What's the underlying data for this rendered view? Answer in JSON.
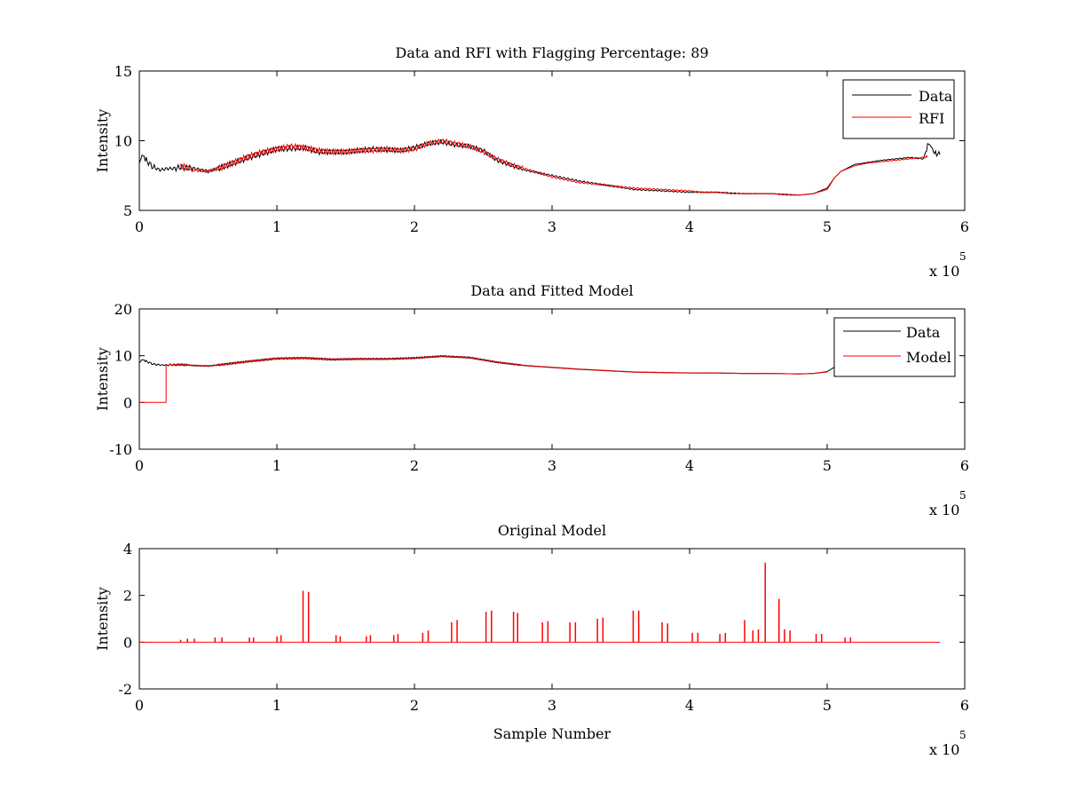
{
  "figure": {
    "background": "#ffffff",
    "x_exponent_base": "x 10",
    "x_exponent_power": "5"
  },
  "colors": {
    "data": "#000000",
    "rfi": "#ff0000",
    "model": "#ff0000"
  },
  "chart_data": [
    {
      "type": "line",
      "title": "Data and RFI with Flagging Percentage: 89",
      "xlabel": "",
      "ylabel": "Intensity",
      "xlim": [
        0,
        6
      ],
      "ylim": [
        5,
        15
      ],
      "xticks": [
        0,
        1,
        2,
        3,
        4,
        5,
        6
      ],
      "yticks": [
        5,
        10,
        15
      ],
      "x_scale_note": "x 10^5",
      "legend": {
        "position": "top-right",
        "entries": [
          "Data",
          "RFI"
        ]
      },
      "series": [
        {
          "name": "Data",
          "color": "#000000",
          "x": [
            0.0,
            0.02,
            0.05,
            0.1,
            0.15,
            0.2,
            0.25,
            0.3,
            0.4,
            0.5,
            0.6,
            0.8,
            1.0,
            1.2,
            1.3,
            1.5,
            1.7,
            1.9,
            2.0,
            2.1,
            2.2,
            2.3,
            2.4,
            2.5,
            2.6,
            2.8,
            3.0,
            3.2,
            3.4,
            3.6,
            3.8,
            4.0,
            4.2,
            4.4,
            4.6,
            4.8,
            4.9,
            5.0,
            5.05,
            5.1,
            5.2,
            5.4,
            5.6,
            5.7,
            5.73,
            5.75,
            5.78,
            5.82
          ],
          "y": [
            8.4,
            9.0,
            8.6,
            8.1,
            7.9,
            8.0,
            8.0,
            8.1,
            8.0,
            7.8,
            8.1,
            8.8,
            9.4,
            9.5,
            9.2,
            9.2,
            9.4,
            9.3,
            9.5,
            9.8,
            9.9,
            9.7,
            9.6,
            9.3,
            8.6,
            7.9,
            7.5,
            7.1,
            6.8,
            6.5,
            6.4,
            6.3,
            6.3,
            6.2,
            6.2,
            6.1,
            6.2,
            6.6,
            7.3,
            7.8,
            8.3,
            8.6,
            8.8,
            8.7,
            9.6,
            9.7,
            9.1,
            9.0
          ]
        },
        {
          "name": "RFI",
          "color": "#ff0000",
          "x": [
            0.3,
            0.4,
            0.5,
            0.6,
            0.7,
            0.8,
            0.9,
            1.0,
            1.1,
            1.2,
            1.3,
            1.4,
            1.5,
            1.6,
            1.7,
            1.8,
            1.9,
            2.0,
            2.1,
            2.2,
            2.3,
            2.4,
            2.5,
            2.6,
            2.7,
            2.8,
            2.9,
            3.0,
            3.1,
            3.2,
            3.3,
            3.4,
            3.6,
            3.8,
            4.0,
            4.1,
            4.2,
            4.3,
            4.4,
            4.5,
            4.6,
            4.7,
            4.8,
            4.9,
            5.0,
            5.05,
            5.1,
            5.2,
            5.3,
            5.4,
            5.5,
            5.6,
            5.7,
            5.73
          ],
          "y": [
            8.2,
            7.9,
            7.8,
            8.1,
            8.5,
            8.9,
            9.2,
            9.4,
            9.6,
            9.5,
            9.3,
            9.2,
            9.2,
            9.3,
            9.3,
            9.4,
            9.3,
            9.4,
            9.8,
            10.0,
            9.8,
            9.6,
            9.2,
            8.7,
            8.3,
            8.0,
            7.7,
            7.4,
            7.2,
            7.0,
            6.9,
            6.8,
            6.6,
            6.5,
            6.4,
            6.3,
            6.3,
            6.2,
            6.2,
            6.2,
            6.2,
            6.1,
            6.1,
            6.2,
            6.5,
            7.3,
            7.8,
            8.2,
            8.4,
            8.5,
            8.6,
            8.7,
            8.8,
            8.8
          ]
        }
      ]
    },
    {
      "type": "line",
      "title": "Data and Fitted Model",
      "xlabel": "",
      "ylabel": "Intensity",
      "xlim": [
        0,
        6
      ],
      "ylim": [
        -10,
        20
      ],
      "xticks": [
        0,
        1,
        2,
        3,
        4,
        5,
        6
      ],
      "yticks": [
        -10,
        0,
        10,
        20
      ],
      "x_scale_note": "x 10^5",
      "legend": {
        "position": "top-right",
        "entries": [
          "Data",
          "Model"
        ]
      },
      "series": [
        {
          "name": "Data",
          "color": "#000000",
          "x": [
            0.0,
            0.02,
            0.05,
            0.1,
            0.15,
            0.2,
            0.3,
            0.4,
            0.5,
            0.6,
            0.8,
            1.0,
            1.2,
            1.4,
            1.6,
            1.8,
            2.0,
            2.2,
            2.4,
            2.6,
            2.8,
            3.0,
            3.2,
            3.4,
            3.6,
            3.8,
            4.0,
            4.2,
            4.4,
            4.6,
            4.8,
            4.9,
            5.0,
            5.05
          ],
          "y": [
            8.5,
            9.2,
            8.8,
            8.2,
            8.0,
            8.0,
            8.1,
            7.9,
            7.8,
            8.1,
            8.8,
            9.4,
            9.5,
            9.2,
            9.3,
            9.3,
            9.5,
            9.9,
            9.6,
            8.6,
            7.9,
            7.5,
            7.1,
            6.8,
            6.5,
            6.4,
            6.3,
            6.3,
            6.2,
            6.2,
            6.1,
            6.2,
            6.6,
            7.5
          ]
        },
        {
          "name": "Model",
          "color": "#ff0000",
          "x": [
            0.0,
            0.195,
            0.195,
            0.3,
            0.4,
            0.5,
            0.6,
            0.8,
            1.0,
            1.2,
            1.4,
            1.6,
            1.8,
            2.0,
            2.2,
            2.4,
            2.6,
            2.8,
            3.0,
            3.2,
            3.4,
            3.6,
            3.8,
            4.0,
            4.2,
            4.4,
            4.6,
            4.8,
            4.9,
            5.0
          ],
          "y": [
            0,
            0,
            8.0,
            8.1,
            7.9,
            7.8,
            8.1,
            8.8,
            9.4,
            9.5,
            9.2,
            9.3,
            9.3,
            9.5,
            9.9,
            9.6,
            8.6,
            7.9,
            7.5,
            7.1,
            6.8,
            6.5,
            6.4,
            6.3,
            6.3,
            6.2,
            6.2,
            6.1,
            6.2,
            6.5
          ]
        }
      ]
    },
    {
      "type": "line",
      "title": "Original Model",
      "xlabel": "Sample Number",
      "ylabel": "Intensity",
      "xlim": [
        0,
        6
      ],
      "ylim": [
        -2,
        4
      ],
      "xticks": [
        0,
        1,
        2,
        3,
        4,
        5,
        6
      ],
      "yticks": [
        -2,
        0,
        2,
        4
      ],
      "x_scale_note": "x 10^5",
      "baseline": {
        "x_start": 0.0,
        "x_end": 5.82,
        "y": 0
      },
      "series": [
        {
          "name": "Original Model spikes",
          "color": "#ff0000",
          "x": [
            0.3,
            0.35,
            0.4,
            0.55,
            0.6,
            0.8,
            0.83,
            1.0,
            1.03,
            1.19,
            1.23,
            1.43,
            1.46,
            1.65,
            1.68,
            1.85,
            1.88,
            2.06,
            2.1,
            2.27,
            2.31,
            2.52,
            2.56,
            2.72,
            2.75,
            2.93,
            2.97,
            3.13,
            3.17,
            3.33,
            3.37,
            3.59,
            3.63,
            3.8,
            3.84,
            4.02,
            4.06,
            4.22,
            4.26,
            4.4,
            4.46,
            4.5,
            4.55,
            4.65,
            4.69,
            4.73,
            4.92,
            4.96,
            5.13,
            5.17
          ],
          "y": [
            0.1,
            0.15,
            0.15,
            0.2,
            0.2,
            0.2,
            0.2,
            0.25,
            0.3,
            2.2,
            2.15,
            0.3,
            0.25,
            0.25,
            0.3,
            0.3,
            0.35,
            0.4,
            0.5,
            0.85,
            0.95,
            1.3,
            1.35,
            1.3,
            1.25,
            0.85,
            0.9,
            0.85,
            0.85,
            1.0,
            1.05,
            1.35,
            1.35,
            0.85,
            0.8,
            0.4,
            0.4,
            0.35,
            0.4,
            0.95,
            0.5,
            0.55,
            3.4,
            1.85,
            0.55,
            0.5,
            0.35,
            0.35,
            0.2,
            0.2
          ]
        }
      ]
    }
  ]
}
